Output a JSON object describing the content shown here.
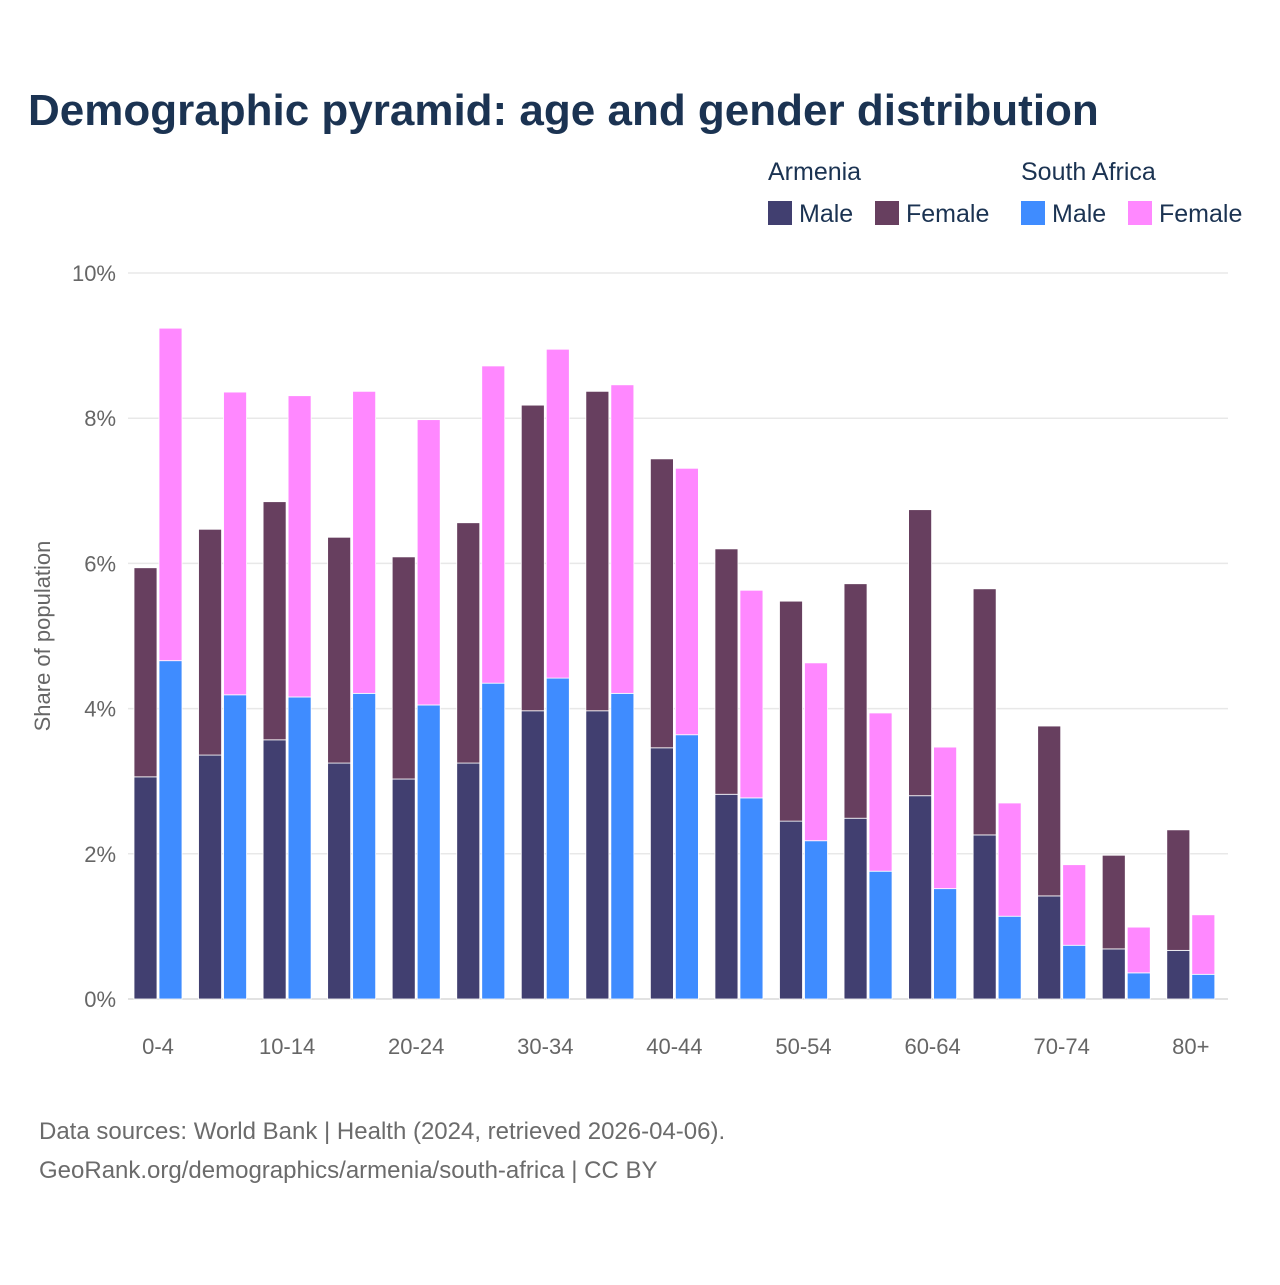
{
  "chart_data": {
    "type": "bar",
    "stacked": true,
    "title": "Demographic pyramid: age and gender distribution",
    "ylabel": "Share of population",
    "xlabel": "",
    "ylim": [
      0,
      10
    ],
    "yticks": [
      "0%",
      "2%",
      "4%",
      "6%",
      "8%",
      "10%"
    ],
    "ytick_values": [
      0,
      2,
      4,
      6,
      8,
      10
    ],
    "grid": true,
    "legend_placement": "top-right",
    "categories": [
      "0-4",
      "5-9",
      "10-14",
      "15-19",
      "20-24",
      "25-29",
      "30-34",
      "35-39",
      "40-44",
      "45-49",
      "50-54",
      "55-59",
      "60-64",
      "65-69",
      "70-74",
      "75-79",
      "80+"
    ],
    "xtick_labels_shown": [
      "0-4",
      "10-14",
      "20-24",
      "30-34",
      "40-44",
      "50-54",
      "60-64",
      "70-74",
      "80+"
    ],
    "groups": [
      {
        "name": "Armenia",
        "series": [
          {
            "name": "Male",
            "color": "#413f70",
            "values": [
              3.06,
              3.36,
              3.57,
              3.25,
              3.03,
              3.25,
              3.97,
              3.97,
              3.46,
              2.82,
              2.45,
              2.49,
              2.8,
              2.26,
              1.42,
              0.69,
              0.67
            ]
          },
          {
            "name": "Female",
            "color": "#673f5f",
            "values": [
              2.88,
              3.11,
              3.28,
              3.11,
              3.06,
              3.31,
              4.21,
              4.4,
              3.98,
              3.38,
              3.03,
              3.23,
              3.94,
              3.39,
              2.34,
              1.29,
              1.66
            ]
          }
        ]
      },
      {
        "name": "South Africa",
        "series": [
          {
            "name": "Male",
            "color": "#3f8cff",
            "values": [
              4.66,
              4.19,
              4.16,
              4.21,
              4.05,
              4.35,
              4.42,
              4.21,
              3.64,
              2.77,
              2.18,
              1.76,
              1.52,
              1.14,
              0.74,
              0.36,
              0.34
            ]
          },
          {
            "name": "Female",
            "color": "#ff88ff",
            "values": [
              4.58,
              4.17,
              4.15,
              4.16,
              3.93,
              4.37,
              4.53,
              4.25,
              3.67,
              2.86,
              2.45,
              2.18,
              1.95,
              1.56,
              1.11,
              0.63,
              0.82
            ]
          }
        ]
      }
    ]
  },
  "footer": {
    "line1": "Data sources: World Bank | Health (2024, retrieved 2026-04-06).",
    "line2": "GeoRank.org/demographics/armenia/south-africa | CC BY"
  }
}
